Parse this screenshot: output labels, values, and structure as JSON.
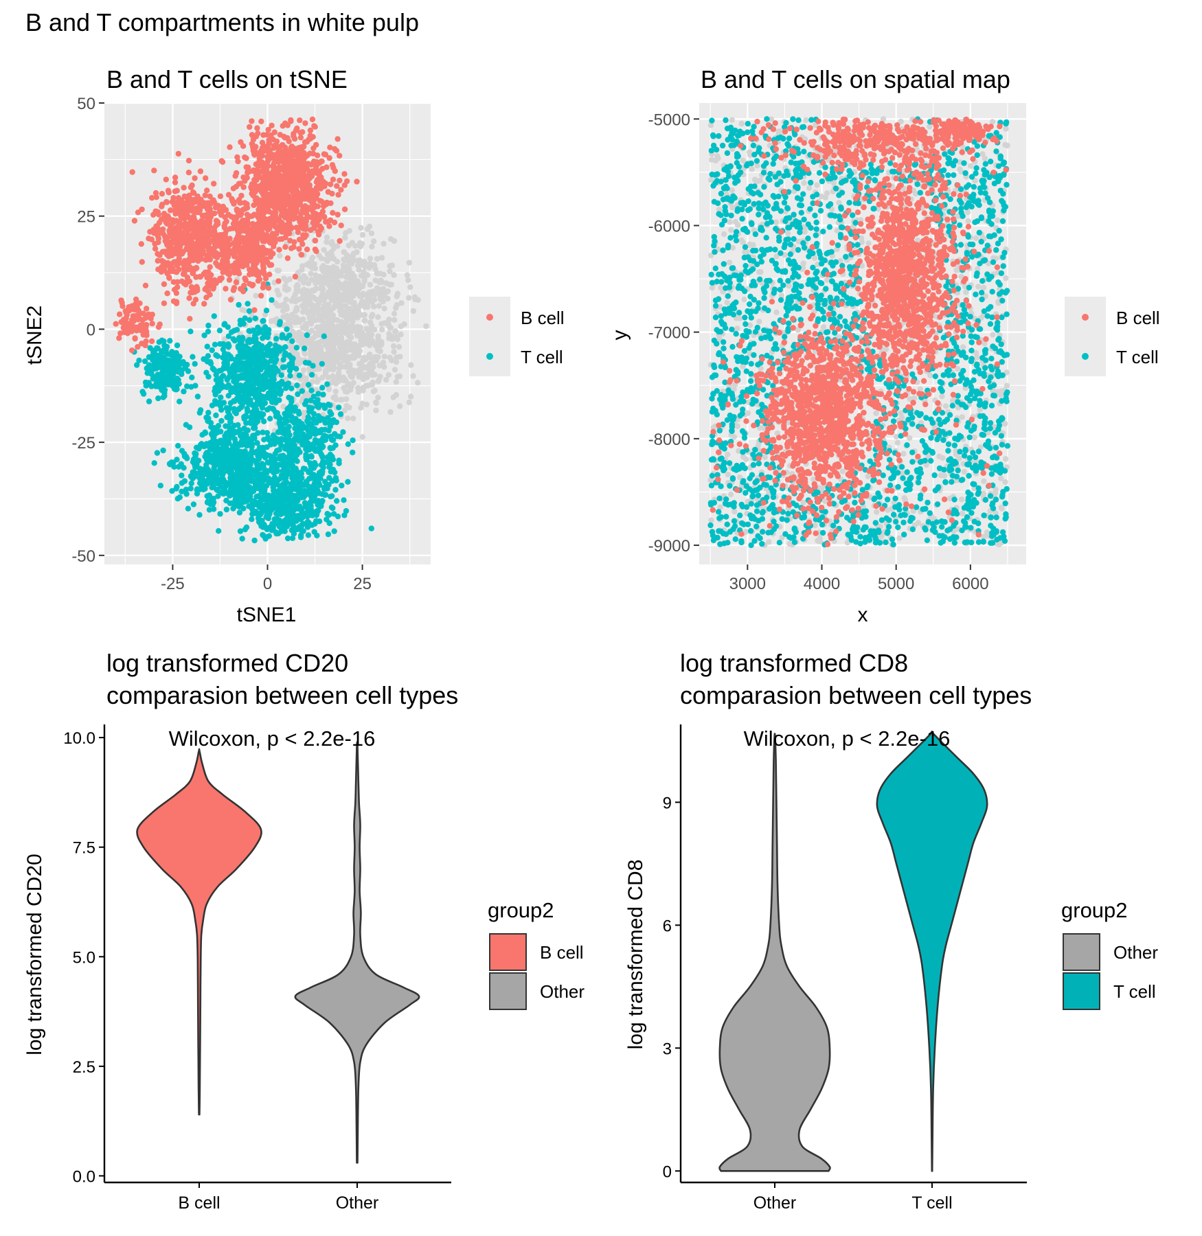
{
  "figure_title": "B and T compartments in white pulp",
  "colors": {
    "b_cell": "#F8766D",
    "t_cell": "#00BFC4",
    "other_points": "#D3D3D3",
    "other_violin": "#A6A6A6",
    "panel_bg": "#EBEBEB"
  },
  "chart_data": [
    {
      "id": "tsne",
      "type": "scatter",
      "title": "B and T cells on tSNE",
      "xlabel": "tSNE1",
      "ylabel": "tSNE2",
      "xlim": [
        -43,
        43
      ],
      "ylim": [
        -52,
        50
      ],
      "xticks": [
        -25,
        0,
        25
      ],
      "xtick_labels": [
        "-25",
        "0",
        "25"
      ],
      "yticks": [
        -50,
        -25,
        0,
        25,
        50
      ],
      "ytick_labels": [
        "-50",
        "-25",
        "0",
        "25",
        "50"
      ],
      "legend": {
        "position": "right",
        "entries": [
          "B cell",
          "T cell"
        ]
      },
      "clusters": [
        {
          "group": "other",
          "cx": 17,
          "cy": -2,
          "sx": 13,
          "sy": 11,
          "n": 900
        },
        {
          "group": "other",
          "cx": 20,
          "cy": 10,
          "sx": 9,
          "sy": 7,
          "n": 300
        },
        {
          "group": "B cell",
          "cx": 5,
          "cy": 32,
          "sx": 8,
          "sy": 8,
          "n": 900
        },
        {
          "group": "B cell",
          "cx": -20,
          "cy": 20,
          "sx": 7,
          "sy": 8,
          "n": 600
        },
        {
          "group": "B cell",
          "cx": -5,
          "cy": 18,
          "sx": 5,
          "sy": 6,
          "n": 300
        },
        {
          "group": "B cell",
          "cx": -35,
          "cy": 2,
          "sx": 3,
          "sy": 3,
          "n": 90
        },
        {
          "group": "T cell",
          "cx": -4,
          "cy": -10,
          "sx": 8,
          "sy": 8,
          "n": 600
        },
        {
          "group": "T cell",
          "cx": -27,
          "cy": -9,
          "sx": 4,
          "sy": 4,
          "n": 200
        },
        {
          "group": "T cell",
          "cx": -10,
          "cy": -30,
          "sx": 8,
          "sy": 6,
          "n": 600
        },
        {
          "group": "T cell",
          "cx": 5,
          "cy": -38,
          "sx": 8,
          "sy": 6,
          "n": 500
        },
        {
          "group": "T cell",
          "cx": 10,
          "cy": -24,
          "sx": 7,
          "sy": 6,
          "n": 300
        }
      ]
    },
    {
      "id": "spatial",
      "type": "scatter",
      "title": "B and T cells on spatial map",
      "xlabel": "x",
      "ylabel": "y",
      "xlim": [
        2350,
        6750
      ],
      "ylim": [
        -9180,
        -4850
      ],
      "xticks": [
        3000,
        4000,
        5000,
        6000
      ],
      "xtick_labels": [
        "3000",
        "4000",
        "5000",
        "6000"
      ],
      "yticks": [
        -9000,
        -8000,
        -7000,
        -6000,
        -5000
      ],
      "ytick_labels": [
        "-9000",
        "-8000",
        "-7000",
        "-6000",
        "-5000"
      ],
      "legend": {
        "position": "right",
        "entries": [
          "B cell",
          "T cell"
        ]
      },
      "data_range": {
        "x": [
          2500,
          6500
        ],
        "y": [
          -9000,
          -5000
        ]
      },
      "b_follicles": [
        {
          "cx": 4000,
          "cy": -7800,
          "sx": 520,
          "sy": 480,
          "n": 1100
        },
        {
          "cx": 5100,
          "cy": -6500,
          "sx": 420,
          "sy": 650,
          "n": 1100
        },
        {
          "cx": 4700,
          "cy": -5200,
          "sx": 800,
          "sy": 160,
          "n": 350
        },
        {
          "cx": 5900,
          "cy": -5100,
          "sx": 250,
          "sy": 80,
          "n": 120
        }
      ],
      "t_uniform_n": 2600,
      "grey_uniform_n": 1200,
      "b_scatter_n": 90
    },
    {
      "id": "cd20",
      "type": "violin",
      "title_lines": [
        "log transformed CD20",
        "comparasion between cell types"
      ],
      "xlabel": "",
      "ylabel": "log transformed CD20",
      "ylim": [
        -0.15,
        10.3
      ],
      "yticks": [
        0,
        2.5,
        5,
        7.5,
        10
      ],
      "ytick_labels": [
        "0.0",
        "2.5",
        "5.0",
        "7.5",
        "10.0"
      ],
      "categories": [
        "B cell",
        "Other"
      ],
      "annotation": "Wilcoxon, p < 2.2e-16",
      "legend": {
        "title": "group2",
        "entries": [
          "B cell",
          "Other"
        ]
      },
      "violins": [
        {
          "category": "B cell",
          "fill": "#F8766D",
          "y": [
            1.4,
            2,
            3,
            4,
            5,
            5.5,
            5.8,
            6.2,
            6.6,
            7.0,
            7.5,
            7.9,
            8.3,
            8.7,
            9.0,
            9.4,
            9.7
          ],
          "w": [
            0.005,
            0.01,
            0.015,
            0.02,
            0.025,
            0.035,
            0.06,
            0.12,
            0.3,
            0.6,
            0.9,
            1.0,
            0.75,
            0.38,
            0.15,
            0.05,
            0.005
          ]
        },
        {
          "category": "Other",
          "fill": "#A6A6A6",
          "y": [
            0.3,
            1.0,
            2.0,
            2.6,
            3.0,
            3.5,
            3.9,
            4.1,
            4.3,
            4.6,
            5.0,
            5.5,
            6.0,
            6.5,
            7.0,
            7.5,
            8.0,
            8.5,
            9.0,
            9.8
          ],
          "w": [
            0.005,
            0.01,
            0.02,
            0.05,
            0.15,
            0.45,
            0.85,
            1.0,
            0.75,
            0.3,
            0.1,
            0.05,
            0.06,
            0.04,
            0.05,
            0.04,
            0.05,
            0.03,
            0.02,
            0.005
          ]
        }
      ]
    },
    {
      "id": "cd8",
      "type": "violin",
      "title_lines": [
        "log transformed CD8",
        "comparasion between cell types"
      ],
      "xlabel": "",
      "ylabel": "log transformed CD8",
      "ylim": [
        -0.28,
        10.9
      ],
      "yticks": [
        0,
        3,
        6,
        9
      ],
      "ytick_labels": [
        "0",
        "3",
        "6",
        "9"
      ],
      "categories": [
        "Other",
        "T cell"
      ],
      "annotation": "Wilcoxon, p < 2.2e-16",
      "legend": {
        "title": "group2",
        "entries": [
          "Other",
          "T cell"
        ]
      },
      "violins": [
        {
          "category": "Other",
          "fill": "#A6A6A6",
          "y": [
            0.0,
            0.1,
            0.3,
            0.6,
            1.0,
            1.5,
            2.0,
            2.5,
            3.0,
            3.5,
            4.0,
            4.5,
            5.0,
            5.5,
            6.0,
            7.0,
            8.0,
            9.0,
            10.0,
            10.6
          ],
          "w": [
            0.98,
            1.0,
            0.85,
            0.5,
            0.45,
            0.65,
            0.85,
            0.98,
            1.0,
            0.95,
            0.75,
            0.45,
            0.22,
            0.12,
            0.08,
            0.05,
            0.04,
            0.03,
            0.02,
            0.005
          ]
        },
        {
          "category": "T cell",
          "fill": "#00B2B8",
          "y": [
            0.0,
            1.0,
            2.0,
            3.0,
            4.0,
            5.0,
            5.5,
            6.0,
            6.5,
            7.0,
            7.5,
            8.0,
            8.5,
            8.9,
            9.3,
            9.7,
            10.1,
            10.5,
            10.7
          ],
          "w": [
            0.003,
            0.01,
            0.02,
            0.05,
            0.1,
            0.18,
            0.25,
            0.35,
            0.45,
            0.55,
            0.65,
            0.75,
            0.9,
            1.0,
            0.95,
            0.75,
            0.45,
            0.15,
            0.003
          ]
        }
      ]
    }
  ]
}
